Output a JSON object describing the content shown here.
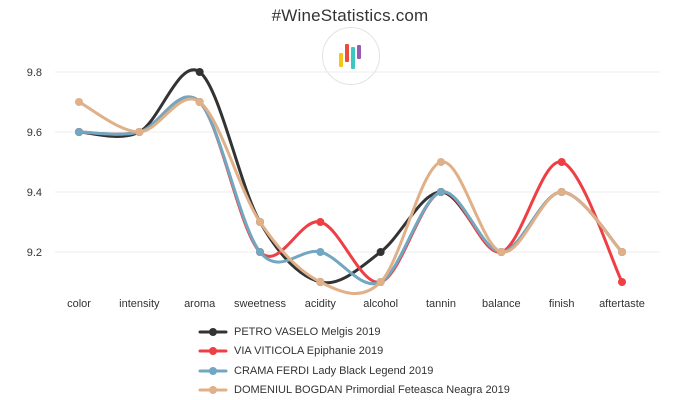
{
  "header": {
    "title": "#WineStatistics.com"
  },
  "logo": {
    "icon": "bar-chart-logo-icon",
    "bar_colors": [
      "#f5c518",
      "#e74c3c",
      "#3cc8c0",
      "#9b59b6"
    ]
  },
  "chart_data": {
    "type": "line",
    "categories": [
      "color",
      "intensity",
      "aroma",
      "sweetness",
      "acidity",
      "alcohol",
      "tannin",
      "balance",
      "finish",
      "aftertaste"
    ],
    "ylim": [
      9.1,
      9.84
    ],
    "yticks": [
      "9.2",
      "9.4",
      "9.6",
      "9.8"
    ],
    "grid": true,
    "legend_position": "bottom",
    "series": [
      {
        "name": "PETRO VASELO Melgis 2019",
        "color": "#333333",
        "values": [
          9.6,
          9.6,
          9.8,
          9.3,
          9.1,
          9.2,
          9.4,
          9.2,
          9.4,
          9.2
        ]
      },
      {
        "name": "VIA VITICOLA Epiphanie 2019",
        "color": "#ee3f45",
        "values": [
          9.6,
          9.6,
          9.7,
          9.2,
          9.3,
          9.1,
          9.4,
          9.2,
          9.5,
          9.1
        ]
      },
      {
        "name": "CRAMA FERDI Lady Black Legend 2019",
        "color": "#71a7c0",
        "values": [
          9.6,
          9.6,
          9.7,
          9.2,
          9.2,
          9.1,
          9.4,
          9.2,
          9.4,
          9.2
        ]
      },
      {
        "name": "DOMENIUL BOGDAN Primordial Feteasca Neagra 2019",
        "color": "#e0b089",
        "values": [
          9.7,
          9.6,
          9.7,
          9.3,
          9.1,
          9.1,
          9.5,
          9.2,
          9.4,
          9.2
        ]
      }
    ]
  }
}
